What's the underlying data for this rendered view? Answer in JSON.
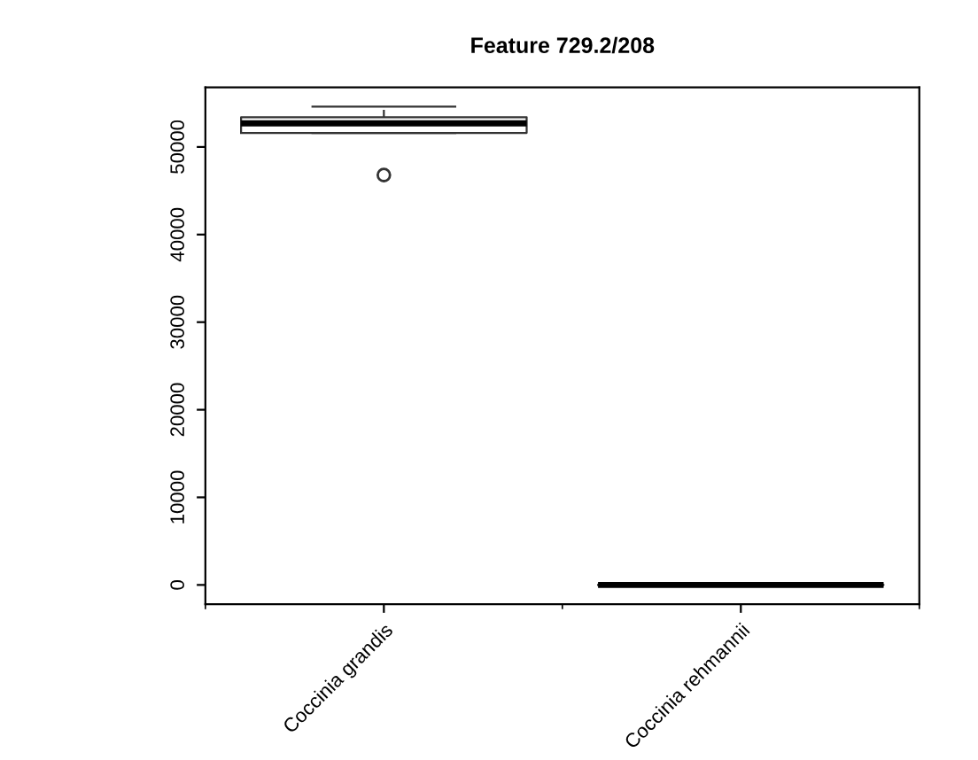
{
  "chart_data": {
    "type": "box",
    "title": "Feature 729.2/208",
    "categories": [
      "Coccinia grandis",
      "Coccinia rehmannii"
    ],
    "boxes": [
      {
        "low": 51600,
        "q1": 51600,
        "median": 52700,
        "q3": 53400,
        "high": 54600,
        "outliers": [
          46800
        ]
      },
      {
        "low": 0,
        "q1": 0,
        "median": 0,
        "q3": 0,
        "high": 0
      }
    ],
    "ylim": [
      -2200,
      56800
    ],
    "yticks": [
      0,
      10000,
      20000,
      30000,
      40000,
      50000
    ],
    "grid": false
  }
}
